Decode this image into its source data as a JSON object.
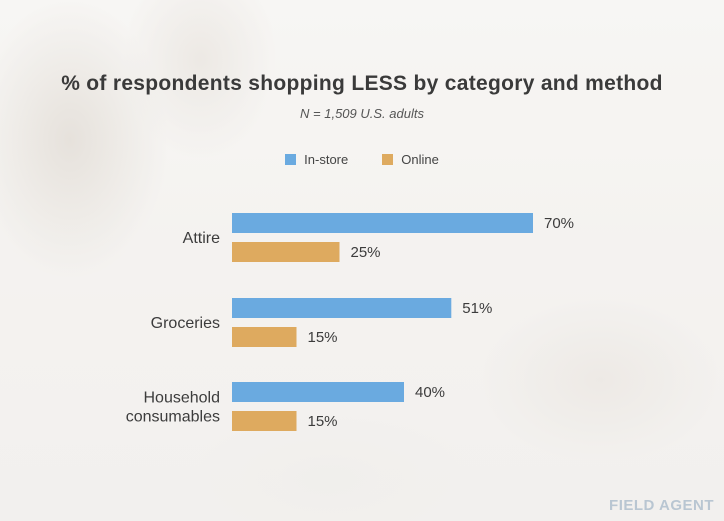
{
  "chart_data": {
    "type": "bar",
    "orientation": "horizontal",
    "title": "% of respondents shopping LESS by category and method",
    "subtitle": "N = 1,509 U.S. adults",
    "categories": [
      {
        "label": [
          "Attire"
        ]
      },
      {
        "label": [
          "Groceries"
        ]
      },
      {
        "label": [
          "Household",
          "consumables"
        ]
      }
    ],
    "series": [
      {
        "name": "In-store",
        "color": "#6aaae0",
        "values": [
          70,
          51,
          40
        ],
        "labels": [
          "70%",
          "51%",
          "40%"
        ]
      },
      {
        "name": "Online",
        "color": "#deaa5f",
        "values": [
          25,
          15,
          15
        ],
        "labels": [
          "25%",
          "15%",
          "15%"
        ]
      }
    ],
    "xlim": [
      0,
      100
    ],
    "legend_position": "top-center",
    "grid": false
  },
  "logo_text": "FIELD AGENT"
}
